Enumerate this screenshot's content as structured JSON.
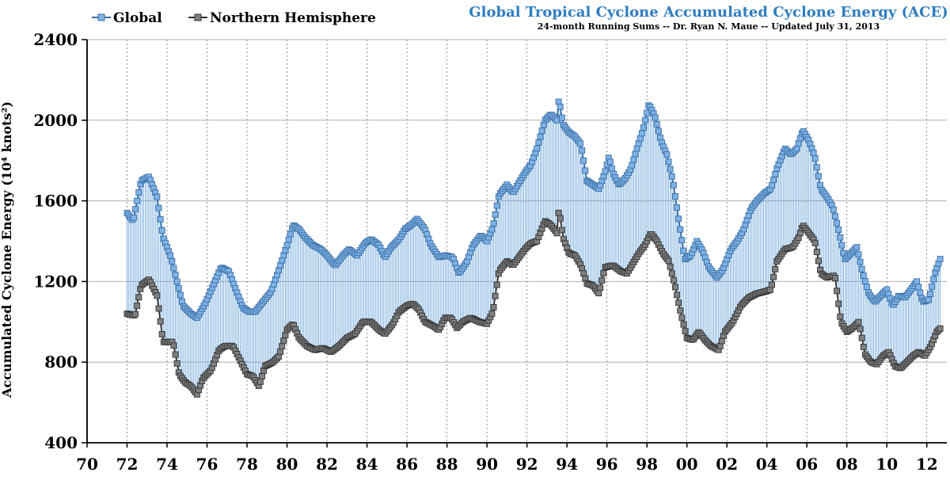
{
  "chart_data": {
    "type": "line",
    "title": "Global Tropical Cyclone Accumulated Cyclone Energy (ACE)",
    "subtitle": "24-month Running Sums -- Dr. Ryan N. Maue -- Updated July 31, 2013",
    "ylabel": "Accumulated Cyclone Energy (10⁴ knots²)",
    "xlabel": "",
    "xlim": [
      70,
      113
    ],
    "ylim": [
      400,
      2400
    ],
    "yticks": [
      400,
      800,
      1200,
      1600,
      2000,
      2400
    ],
    "xtick_labels": [
      "70",
      "72",
      "74",
      "76",
      "78",
      "80",
      "82",
      "84",
      "86",
      "88",
      "90",
      "92",
      "94",
      "96",
      "98",
      "00",
      "02",
      "04",
      "06",
      "08",
      "10",
      "12"
    ],
    "legend": {
      "position": "top-left"
    },
    "colors": {
      "global": "#7fb2e5",
      "global_edge": "#3a6ea5",
      "nh": "#808080",
      "nh_edge": "#333333",
      "fill_lines": "#5b9bd5"
    },
    "series": [
      {
        "name": "Global",
        "anchors": [
          [
            72.0,
            1540
          ],
          [
            72.3,
            1500
          ],
          [
            72.7,
            1700
          ],
          [
            73.1,
            1720
          ],
          [
            73.5,
            1620
          ],
          [
            73.8,
            1420
          ],
          [
            74.2,
            1320
          ],
          [
            74.5,
            1200
          ],
          [
            74.8,
            1080
          ],
          [
            75.2,
            1040
          ],
          [
            75.5,
            1020
          ],
          [
            75.9,
            1090
          ],
          [
            76.3,
            1180
          ],
          [
            76.7,
            1270
          ],
          [
            77.1,
            1250
          ],
          [
            77.4,
            1170
          ],
          [
            77.8,
            1070
          ],
          [
            78.1,
            1050
          ],
          [
            78.4,
            1050
          ],
          [
            78.8,
            1100
          ],
          [
            79.2,
            1150
          ],
          [
            79.6,
            1260
          ],
          [
            80.0,
            1380
          ],
          [
            80.3,
            1480
          ],
          [
            80.6,
            1460
          ],
          [
            80.9,
            1420
          ],
          [
            81.3,
            1380
          ],
          [
            81.7,
            1360
          ],
          [
            82.0,
            1330
          ],
          [
            82.4,
            1280
          ],
          [
            82.8,
            1330
          ],
          [
            83.1,
            1360
          ],
          [
            83.5,
            1330
          ],
          [
            83.9,
            1390
          ],
          [
            84.2,
            1410
          ],
          [
            84.6,
            1380
          ],
          [
            84.9,
            1320
          ],
          [
            85.2,
            1370
          ],
          [
            85.6,
            1410
          ],
          [
            85.9,
            1460
          ],
          [
            86.2,
            1480
          ],
          [
            86.5,
            1510
          ],
          [
            86.9,
            1460
          ],
          [
            87.2,
            1380
          ],
          [
            87.6,
            1320
          ],
          [
            87.9,
            1330
          ],
          [
            88.3,
            1320
          ],
          [
            88.6,
            1240
          ],
          [
            89.0,
            1300
          ],
          [
            89.3,
            1380
          ],
          [
            89.7,
            1430
          ],
          [
            90.0,
            1400
          ],
          [
            90.3,
            1470
          ],
          [
            90.6,
            1630
          ],
          [
            91.0,
            1680
          ],
          [
            91.3,
            1640
          ],
          [
            91.6,
            1690
          ],
          [
            91.9,
            1740
          ],
          [
            92.2,
            1780
          ],
          [
            92.5,
            1860
          ],
          [
            92.9,
            2000
          ],
          [
            93.2,
            2030
          ],
          [
            93.5,
            2000
          ],
          [
            93.6,
            2110
          ],
          [
            93.8,
            1980
          ],
          [
            94.1,
            1940
          ],
          [
            94.4,
            1920
          ],
          [
            94.7,
            1880
          ],
          [
            95.0,
            1700
          ],
          [
            95.3,
            1680
          ],
          [
            95.6,
            1660
          ],
          [
            95.9,
            1740
          ],
          [
            96.1,
            1820
          ],
          [
            96.3,
            1740
          ],
          [
            96.6,
            1680
          ],
          [
            96.9,
            1710
          ],
          [
            97.2,
            1760
          ],
          [
            97.5,
            1860
          ],
          [
            97.8,
            1950
          ],
          [
            98.1,
            2080
          ],
          [
            98.4,
            2020
          ],
          [
            98.7,
            1900
          ],
          [
            99.0,
            1830
          ],
          [
            99.3,
            1700
          ],
          [
            99.6,
            1500
          ],
          [
            99.9,
            1310
          ],
          [
            100.2,
            1330
          ],
          [
            100.5,
            1400
          ],
          [
            100.8,
            1350
          ],
          [
            101.1,
            1270
          ],
          [
            101.5,
            1220
          ],
          [
            101.8,
            1260
          ],
          [
            102.2,
            1360
          ],
          [
            102.5,
            1400
          ],
          [
            102.8,
            1450
          ],
          [
            103.2,
            1560
          ],
          [
            103.5,
            1600
          ],
          [
            103.9,
            1640
          ],
          [
            104.2,
            1660
          ],
          [
            104.5,
            1760
          ],
          [
            104.9,
            1860
          ],
          [
            105.2,
            1830
          ],
          [
            105.5,
            1860
          ],
          [
            105.8,
            1950
          ],
          [
            106.1,
            1900
          ],
          [
            106.4,
            1820
          ],
          [
            106.7,
            1660
          ],
          [
            107.0,
            1620
          ],
          [
            107.3,
            1570
          ],
          [
            107.6,
            1450
          ],
          [
            107.9,
            1310
          ],
          [
            108.2,
            1340
          ],
          [
            108.5,
            1370
          ],
          [
            108.8,
            1240
          ],
          [
            109.1,
            1140
          ],
          [
            109.4,
            1100
          ],
          [
            109.7,
            1130
          ],
          [
            110.0,
            1160
          ],
          [
            110.3,
            1080
          ],
          [
            110.6,
            1130
          ],
          [
            110.9,
            1120
          ],
          [
            111.2,
            1160
          ],
          [
            111.5,
            1200
          ],
          [
            111.8,
            1100
          ],
          [
            112.1,
            1110
          ],
          [
            112.4,
            1240
          ],
          [
            112.7,
            1320
          ]
        ]
      },
      {
        "name": "Northern Hemisphere",
        "anchors": [
          [
            72.0,
            1040
          ],
          [
            72.4,
            1030
          ],
          [
            72.7,
            1180
          ],
          [
            73.1,
            1210
          ],
          [
            73.5,
            1130
          ],
          [
            73.8,
            900
          ],
          [
            74.3,
            900
          ],
          [
            74.6,
            740
          ],
          [
            74.9,
            700
          ],
          [
            75.2,
            680
          ],
          [
            75.5,
            640
          ],
          [
            75.8,
            720
          ],
          [
            76.2,
            760
          ],
          [
            76.6,
            860
          ],
          [
            76.9,
            880
          ],
          [
            77.3,
            880
          ],
          [
            77.7,
            800
          ],
          [
            78.0,
            740
          ],
          [
            78.3,
            730
          ],
          [
            78.6,
            680
          ],
          [
            78.9,
            780
          ],
          [
            79.3,
            800
          ],
          [
            79.6,
            830
          ],
          [
            80.0,
            960
          ],
          [
            80.3,
            990
          ],
          [
            80.6,
            920
          ],
          [
            81.0,
            880
          ],
          [
            81.4,
            860
          ],
          [
            81.8,
            870
          ],
          [
            82.2,
            850
          ],
          [
            82.6,
            880
          ],
          [
            83.0,
            920
          ],
          [
            83.4,
            940
          ],
          [
            83.8,
            1000
          ],
          [
            84.2,
            1000
          ],
          [
            84.6,
            960
          ],
          [
            84.9,
            940
          ],
          [
            85.3,
            990
          ],
          [
            85.6,
            1050
          ],
          [
            86.0,
            1080
          ],
          [
            86.3,
            1090
          ],
          [
            86.6,
            1060
          ],
          [
            86.9,
            1000
          ],
          [
            87.3,
            980
          ],
          [
            87.6,
            960
          ],
          [
            87.9,
            1020
          ],
          [
            88.2,
            1020
          ],
          [
            88.5,
            970
          ],
          [
            88.8,
            1000
          ],
          [
            89.2,
            1020
          ],
          [
            89.6,
            1000
          ],
          [
            90.0,
            990
          ],
          [
            90.3,
            1050
          ],
          [
            90.6,
            1250
          ],
          [
            91.0,
            1300
          ],
          [
            91.3,
            1280
          ],
          [
            91.6,
            1320
          ],
          [
            91.9,
            1360
          ],
          [
            92.2,
            1390
          ],
          [
            92.5,
            1400
          ],
          [
            92.9,
            1500
          ],
          [
            93.2,
            1480
          ],
          [
            93.5,
            1440
          ],
          [
            93.6,
            1560
          ],
          [
            93.8,
            1420
          ],
          [
            94.1,
            1340
          ],
          [
            94.4,
            1330
          ],
          [
            94.7,
            1280
          ],
          [
            95.0,
            1190
          ],
          [
            95.3,
            1180
          ],
          [
            95.6,
            1140
          ],
          [
            95.9,
            1270
          ],
          [
            96.3,
            1280
          ],
          [
            96.7,
            1250
          ],
          [
            97.0,
            1240
          ],
          [
            97.3,
            1290
          ],
          [
            97.6,
            1340
          ],
          [
            97.9,
            1380
          ],
          [
            98.2,
            1440
          ],
          [
            98.5,
            1400
          ],
          [
            98.8,
            1340
          ],
          [
            99.1,
            1300
          ],
          [
            99.4,
            1180
          ],
          [
            99.7,
            1040
          ],
          [
            100.0,
            920
          ],
          [
            100.3,
            910
          ],
          [
            100.6,
            950
          ],
          [
            100.9,
            910
          ],
          [
            101.2,
            880
          ],
          [
            101.6,
            860
          ],
          [
            101.9,
            950
          ],
          [
            102.3,
            1000
          ],
          [
            102.7,
            1080
          ],
          [
            103.1,
            1120
          ],
          [
            103.5,
            1140
          ],
          [
            103.9,
            1150
          ],
          [
            104.2,
            1160
          ],
          [
            104.5,
            1300
          ],
          [
            104.9,
            1360
          ],
          [
            105.3,
            1370
          ],
          [
            105.6,
            1420
          ],
          [
            105.8,
            1480
          ],
          [
            106.1,
            1440
          ],
          [
            106.4,
            1400
          ],
          [
            106.7,
            1240
          ],
          [
            107.0,
            1220
          ],
          [
            107.4,
            1230
          ],
          [
            107.7,
            1000
          ],
          [
            108.0,
            950
          ],
          [
            108.3,
            970
          ],
          [
            108.6,
            1000
          ],
          [
            108.9,
            840
          ],
          [
            109.2,
            800
          ],
          [
            109.5,
            790
          ],
          [
            109.8,
            830
          ],
          [
            110.1,
            850
          ],
          [
            110.4,
            780
          ],
          [
            110.7,
            770
          ],
          [
            111.0,
            800
          ],
          [
            111.3,
            830
          ],
          [
            111.6,
            850
          ],
          [
            111.9,
            830
          ],
          [
            112.2,
            880
          ],
          [
            112.5,
            950
          ],
          [
            112.8,
            980
          ]
        ]
      }
    ]
  }
}
